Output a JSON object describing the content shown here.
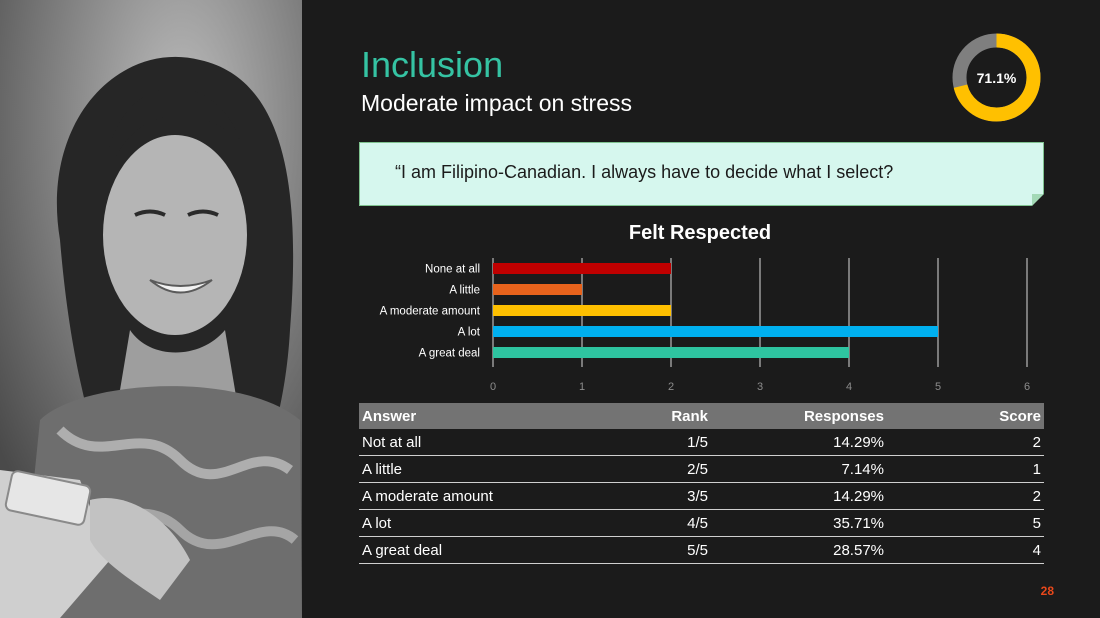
{
  "slide": {
    "title": "Inclusion",
    "subtitle": "Moderate impact on stress",
    "score_percent_label": "71.1%",
    "score_fraction": 0.711,
    "quote": "“I am Filipino-Canadian. I always have to decide what I select?",
    "page_number": "28",
    "colors": {
      "title": "#35c3a3",
      "donut_fill": "#ffc000",
      "donut_track": "#7f7f7f",
      "quote_bg": "#d6f7ee",
      "page_number": "#e8481b"
    }
  },
  "chart_data": {
    "type": "bar",
    "orientation": "horizontal",
    "title": "Felt Respected",
    "categories": [
      "None at all",
      "A little",
      "A moderate amount",
      "A lot",
      "A great deal"
    ],
    "values": [
      2,
      1,
      2,
      5,
      4
    ],
    "bar_colors": [
      "#c00000",
      "#e8631c",
      "#ffc000",
      "#00b0f0",
      "#2ec4a0"
    ],
    "xlim": [
      0,
      6
    ],
    "xticks": [
      "0",
      "1",
      "2",
      "3",
      "4",
      "5",
      "6"
    ],
    "grid": true
  },
  "table": {
    "headers": [
      "Answer",
      "Rank",
      "Responses",
      "Score"
    ],
    "rows": [
      [
        "Not at all",
        "1/5",
        "14.29%",
        "2"
      ],
      [
        "A little",
        "2/5",
        "7.14%",
        "1"
      ],
      [
        "A moderate amount",
        "3/5",
        "14.29%",
        "2"
      ],
      [
        "A lot",
        "4/5",
        "35.71%",
        "5"
      ],
      [
        "A great deal",
        "5/5",
        "28.57%",
        "4"
      ]
    ]
  }
}
